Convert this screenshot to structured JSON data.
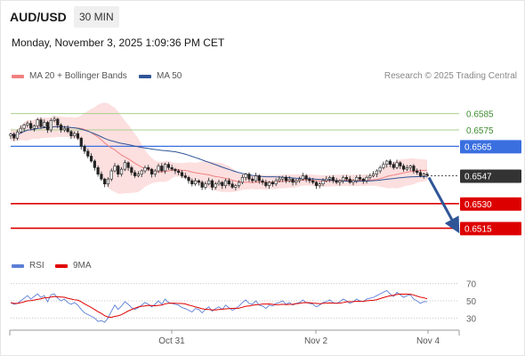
{
  "header": {
    "pair": "AUD/USD",
    "timeframe": "30 MIN",
    "datetime": "Monday, November 3, 2025 1:09:36 PM CET"
  },
  "legend": {
    "ma_bb": "MA 20 + Bollinger Bands",
    "ma50": "MA 50",
    "rsi": "RSI",
    "rsi_ma": "9MA",
    "credit": "Research © 2025 Trading Central"
  },
  "colors": {
    "ma20": "#f08080",
    "band_fill": "#fbd9d9",
    "ma50": "#2f5597",
    "green_level": "#a8d08d",
    "blue_level": "#3a6fe0",
    "red_level": "#dd0000",
    "candle": "#222222",
    "rsi": "#5b7fd6",
    "rsi_ma": "#e00000",
    "arrow": "#2f5597"
  },
  "chart_data": {
    "type": "candlestick",
    "x_ticks": [
      "Oct 31",
      "Nov 2",
      "Nov 4"
    ],
    "price_ylim": [
      0.65,
      0.66
    ],
    "current_price": "0.6547",
    "levels": [
      {
        "label": "0.6585",
        "value": 0.6585,
        "kind": "target"
      },
      {
        "label": "0.6575",
        "value": 0.6575,
        "kind": "target"
      },
      {
        "label": "0.6565",
        "value": 0.6565,
        "kind": "pivot"
      },
      {
        "label": "0.6530",
        "value": 0.653,
        "kind": "support"
      },
      {
        "label": "0.6515",
        "value": 0.6515,
        "kind": "support"
      }
    ],
    "forecast_arrow": {
      "from": 0.6547,
      "to": 0.6515
    },
    "close": [
      0.65725,
      0.657,
      0.65738,
      0.6576,
      0.6578,
      0.6579,
      0.6576,
      0.65775,
      0.65812,
      0.6577,
      0.65796,
      0.6575,
      0.65808,
      0.65816,
      0.6578,
      0.6575,
      0.6576,
      0.6574,
      0.65714,
      0.65728,
      0.657,
      0.6565,
      0.6562,
      0.6559,
      0.6556,
      0.6552,
      0.6548,
      0.6545,
      0.6542,
      0.6545,
      0.655,
      0.6553,
      0.6548,
      0.6551,
      0.6555,
      0.6552,
      0.6549,
      0.6547,
      0.6548,
      0.655,
      0.6552,
      0.6551,
      0.6548,
      0.655,
      0.6553,
      0.655,
      0.6554,
      0.6552,
      0.6551,
      0.655,
      0.6549,
      0.6547,
      0.6546,
      0.6544,
      0.6542,
      0.6544,
      0.6543,
      0.654,
      0.6542,
      0.6544,
      0.654,
      0.6542,
      0.6543,
      0.6541,
      0.6544,
      0.6542,
      0.654,
      0.6541,
      0.6543,
      0.6546,
      0.6548,
      0.6545,
      0.6544,
      0.6547,
      0.6544,
      0.6543,
      0.6541,
      0.6543,
      0.6542,
      0.6544,
      0.6545,
      0.6546,
      0.6544,
      0.6545,
      0.6543,
      0.6544,
      0.6545,
      0.6547,
      0.6545,
      0.6544,
      0.6543,
      0.6541,
      0.6542,
      0.6544,
      0.6545,
      0.6546,
      0.6544,
      0.6543,
      0.6544,
      0.6546,
      0.6545,
      0.6543,
      0.6544,
      0.6546,
      0.6545,
      0.6544,
      0.6546,
      0.6547,
      0.6548,
      0.655,
      0.6552,
      0.6554,
      0.6556,
      0.6554,
      0.6552,
      0.6555,
      0.6553,
      0.6551,
      0.6552,
      0.6553,
      0.655,
      0.6549,
      0.6547,
      0.6548,
      0.65475
    ],
    "rsi_ylim": [
      20,
      80
    ],
    "rsi_ticks": [
      30,
      50,
      70
    ],
    "rsi": [
      48,
      46,
      47,
      50,
      53,
      56,
      52,
      55,
      58,
      54,
      56,
      49,
      57,
      58,
      53,
      50,
      52,
      48,
      46,
      48,
      45,
      40,
      36,
      34,
      32,
      30,
      26,
      27,
      25,
      30,
      38,
      45,
      40,
      44,
      49,
      46,
      42,
      40,
      42,
      45,
      48,
      46,
      43,
      46,
      50,
      46,
      52,
      48,
      47,
      46,
      45,
      42,
      41,
      39,
      37,
      41,
      40,
      36,
      40,
      43,
      38,
      41,
      43,
      40,
      45,
      42,
      39,
      41,
      44,
      48,
      51,
      47,
      46,
      50,
      45,
      44,
      41,
      45,
      44,
      47,
      48,
      50,
      46,
      48,
      45,
      47,
      48,
      51,
      48,
      47,
      46,
      43,
      45,
      48,
      49,
      51,
      48,
      47,
      49,
      52,
      50,
      47,
      49,
      52,
      50,
      49,
      52,
      53,
      54,
      56,
      58,
      60,
      62,
      58,
      55,
      60,
      57,
      54,
      56,
      57,
      52,
      50,
      47,
      49,
      49
    ]
  }
}
